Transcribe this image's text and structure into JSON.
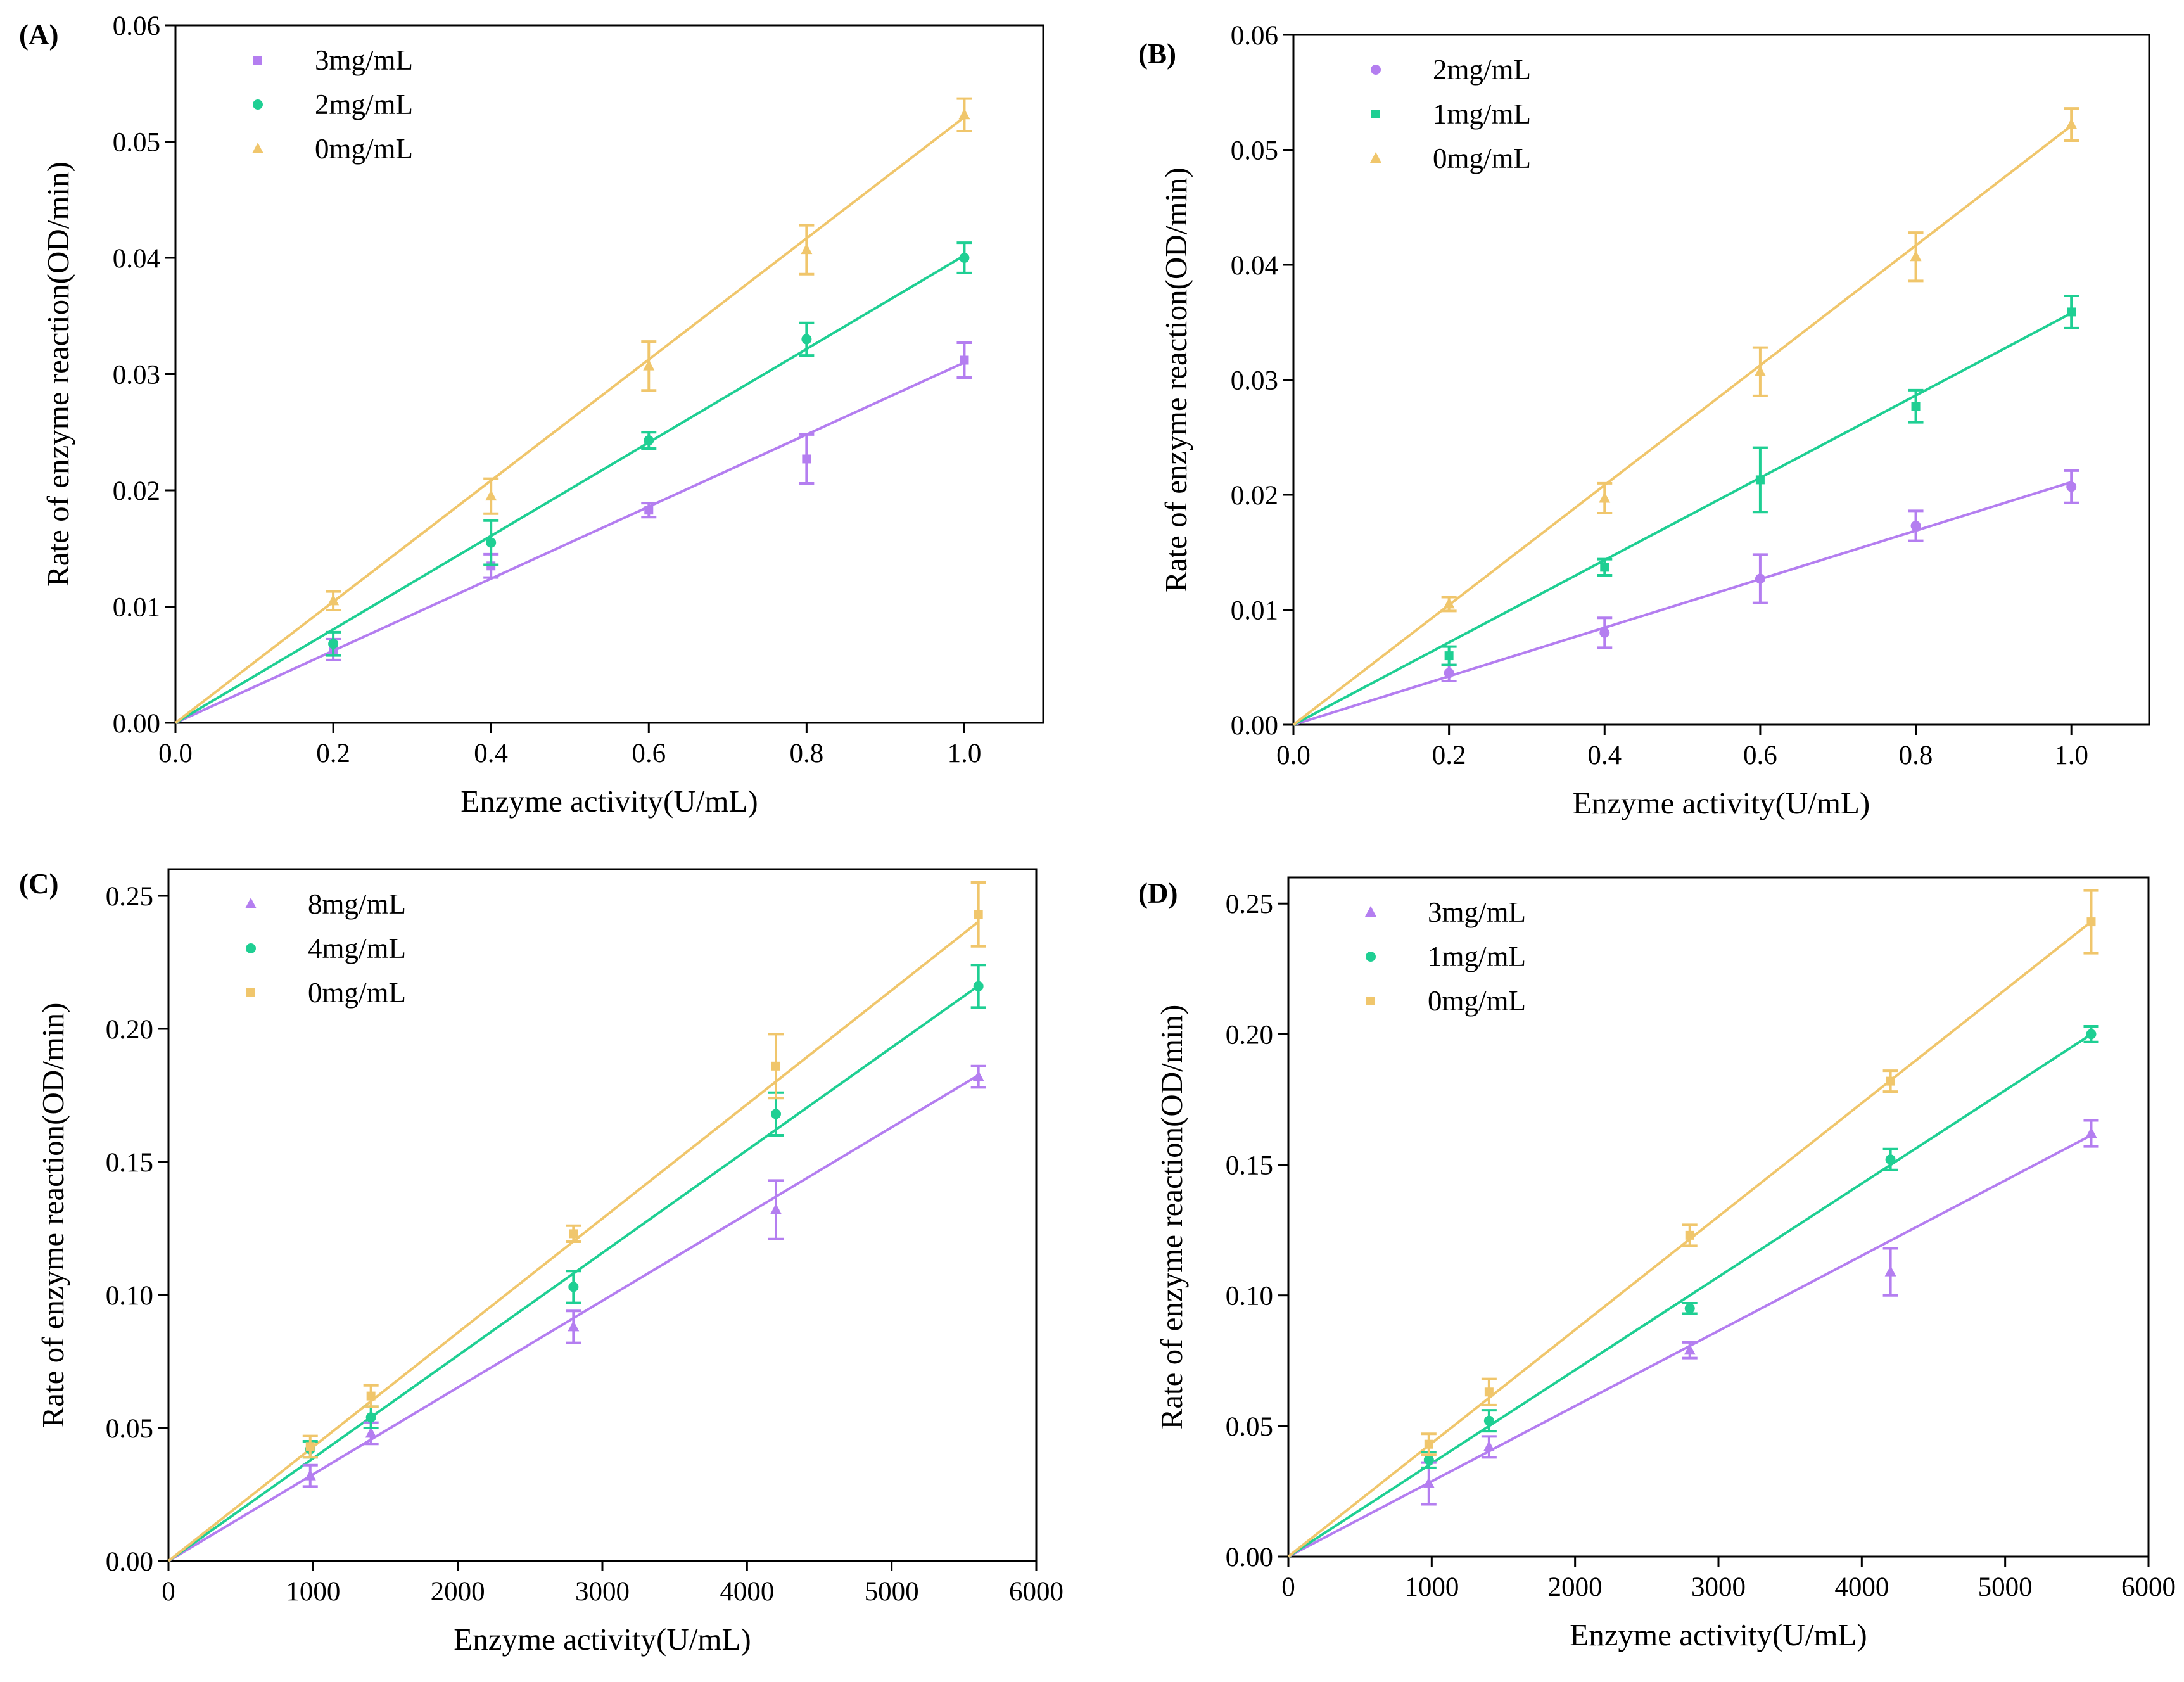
{
  "figure": {
    "colors": {
      "purple": "#b47ef0",
      "green": "#1fcf93",
      "yellow": "#f0c66c"
    }
  },
  "chart_data": [
    {
      "panel": "(A)",
      "type": "scatter",
      "xlabel": "Enzyme activity(U/mL)",
      "ylabel": "Rate of enzyme reaction(OD/min)",
      "xlim": [
        0,
        1.1
      ],
      "ylim": [
        0,
        0.06
      ],
      "xticks": [
        0.0,
        0.2,
        0.4,
        0.6,
        0.8,
        1.0
      ],
      "xtick_labels": [
        "0.0",
        "0.2",
        "0.4",
        "0.6",
        "0.8",
        "1.0"
      ],
      "yticks": [
        0,
        0.01,
        0.02,
        0.03,
        0.04,
        0.05,
        0.06
      ],
      "ytick_labels": [
        "0.00",
        "0.01",
        "0.02",
        "0.03",
        "0.04",
        "0.05",
        "0.06"
      ],
      "legend_position": "top-left",
      "series": [
        {
          "name": "3mg/mL",
          "color": "purple",
          "marker": "square",
          "x": [
            0.2,
            0.4,
            0.6,
            0.8,
            1.0
          ],
          "y": [
            0.0063,
            0.0135,
            0.0183,
            0.0227,
            0.0312
          ],
          "err": [
            0.0009,
            0.001,
            0.0006,
            0.0021,
            0.0015
          ],
          "slope": 0.031
        },
        {
          "name": "2mg/mL",
          "color": "green",
          "marker": "circle",
          "x": [
            0.2,
            0.4,
            0.6,
            0.8,
            1.0
          ],
          "y": [
            0.0068,
            0.0155,
            0.0243,
            0.033,
            0.04
          ],
          "err": [
            0.001,
            0.0019,
            0.0007,
            0.0014,
            0.0013
          ],
          "slope": 0.0402
        },
        {
          "name": "0mg/mL",
          "color": "yellow",
          "marker": "triangle",
          "x": [
            0.2,
            0.4,
            0.6,
            0.8,
            1.0
          ],
          "y": [
            0.0105,
            0.0195,
            0.0307,
            0.0407,
            0.0523
          ],
          "err": [
            0.0008,
            0.0015,
            0.0021,
            0.0021,
            0.0014
          ],
          "slope": 0.0521
        }
      ]
    },
    {
      "panel": "(B)",
      "type": "scatter",
      "xlabel": "Enzyme activity(U/mL)",
      "ylabel": "Rate of enzyme reaction(OD/min)",
      "xlim": [
        0,
        1.1
      ],
      "ylim": [
        0,
        0.06
      ],
      "xticks": [
        0.0,
        0.2,
        0.4,
        0.6,
        0.8,
        1.0
      ],
      "xtick_labels": [
        "0.0",
        "0.2",
        "0.4",
        "0.6",
        "0.8",
        "1.0"
      ],
      "yticks": [
        0,
        0.01,
        0.02,
        0.03,
        0.04,
        0.05,
        0.06
      ],
      "ytick_labels": [
        "0.00",
        "0.01",
        "0.02",
        "0.03",
        "0.04",
        "0.05",
        "0.06"
      ],
      "legend_position": "top-left",
      "series": [
        {
          "name": "2mg/mL",
          "color": "purple",
          "marker": "circle",
          "x": [
            0.2,
            0.4,
            0.6,
            0.8,
            1.0
          ],
          "y": [
            0.0045,
            0.008,
            0.0127,
            0.0173,
            0.0207
          ],
          "err": [
            0.0007,
            0.0013,
            0.0021,
            0.0013,
            0.0014
          ],
          "slope": 0.0211
        },
        {
          "name": "1mg/mL",
          "color": "green",
          "marker": "square",
          "x": [
            0.2,
            0.4,
            0.6,
            0.8,
            1.0
          ],
          "y": [
            0.006,
            0.0137,
            0.0213,
            0.0277,
            0.0359
          ],
          "err": [
            0.0008,
            0.0007,
            0.0028,
            0.0014,
            0.0014
          ],
          "slope": 0.0358
        },
        {
          "name": "0mg/mL",
          "color": "yellow",
          "marker": "triangle",
          "x": [
            0.2,
            0.4,
            0.6,
            0.8,
            1.0
          ],
          "y": [
            0.0105,
            0.0197,
            0.0307,
            0.0407,
            0.0522
          ],
          "err": [
            0.0006,
            0.0013,
            0.0021,
            0.0021,
            0.0014
          ],
          "slope": 0.0521
        }
      ]
    },
    {
      "panel": "(C)",
      "type": "scatter",
      "xlabel": "Enzyme activity(U/mL)",
      "ylabel": "Rate of enzyme reaction(OD/min)",
      "xlim": [
        0,
        6000
      ],
      "ylim": [
        0,
        0.26
      ],
      "xticks": [
        0,
        1000,
        2000,
        3000,
        4000,
        5000,
        6000
      ],
      "xtick_labels": [
        "0",
        "1000",
        "2000",
        "3000",
        "4000",
        "5000",
        "6000"
      ],
      "yticks": [
        0,
        0.05,
        0.1,
        0.15,
        0.2,
        0.25
      ],
      "ytick_labels": [
        "0.00",
        "0.05",
        "0.10",
        "0.15",
        "0.20",
        "0.25"
      ],
      "legend_position": "top-left",
      "series": [
        {
          "name": "8mg/mL",
          "color": "purple",
          "marker": "triangle",
          "x": [
            980,
            1400,
            2800,
            4200,
            5600
          ],
          "y": [
            0.032,
            0.048,
            0.088,
            0.132,
            0.182
          ],
          "err": [
            0.004,
            0.004,
            0.006,
            0.011,
            0.004
          ],
          "slope": 3.26e-05
        },
        {
          "name": "4mg/mL",
          "color": "green",
          "marker": "circle",
          "x": [
            980,
            1400,
            2800,
            4200,
            5600
          ],
          "y": [
            0.042,
            0.054,
            0.103,
            0.168,
            0.216
          ],
          "err": [
            0.003,
            0.004,
            0.006,
            0.008,
            0.008
          ],
          "slope": 3.86e-05
        },
        {
          "name": "0mg/mL",
          "color": "yellow",
          "marker": "square",
          "x": [
            980,
            1400,
            2800,
            4200,
            5600
          ],
          "y": [
            0.043,
            0.062,
            0.123,
            0.186,
            0.243
          ],
          "err": [
            0.004,
            0.004,
            0.003,
            0.012,
            0.012
          ],
          "slope": 4.29e-05
        }
      ]
    },
    {
      "panel": "(D)",
      "type": "scatter",
      "xlabel": "Enzyme activity(U/mL)",
      "ylabel": "Rate of enzyme reaction(OD/min)",
      "xlim": [
        0,
        6000
      ],
      "ylim": [
        0,
        0.26
      ],
      "xticks": [
        0,
        1000,
        2000,
        3000,
        4000,
        5000,
        6000
      ],
      "xtick_labels": [
        "0",
        "1000",
        "2000",
        "3000",
        "4000",
        "5000",
        "6000"
      ],
      "yticks": [
        0,
        0.05,
        0.1,
        0.15,
        0.2,
        0.25
      ],
      "ytick_labels": [
        "0.00",
        "0.05",
        "0.10",
        "0.15",
        "0.20",
        "0.25"
      ],
      "legend_position": "top-left",
      "series": [
        {
          "name": "3mg/mL",
          "color": "purple",
          "marker": "triangle",
          "x": [
            980,
            1400,
            2800,
            4200,
            5600
          ],
          "y": [
            0.028,
            0.042,
            0.079,
            0.109,
            0.162
          ],
          "err": [
            0.008,
            0.004,
            0.003,
            0.009,
            0.005
          ],
          "slope": 2.88e-05
        },
        {
          "name": "1mg/mL",
          "color": "green",
          "marker": "circle",
          "x": [
            980,
            1400,
            2800,
            4200,
            5600
          ],
          "y": [
            0.037,
            0.052,
            0.095,
            0.152,
            0.2
          ],
          "err": [
            0.003,
            0.004,
            0.002,
            0.004,
            0.003
          ],
          "slope": 3.57e-05
        },
        {
          "name": "0mg/mL",
          "color": "yellow",
          "marker": "square",
          "x": [
            980,
            1400,
            2800,
            4200,
            5600
          ],
          "y": [
            0.043,
            0.063,
            0.123,
            0.182,
            0.243
          ],
          "err": [
            0.004,
            0.005,
            0.004,
            0.004,
            0.012
          ],
          "slope": 4.34e-05
        }
      ]
    }
  ]
}
